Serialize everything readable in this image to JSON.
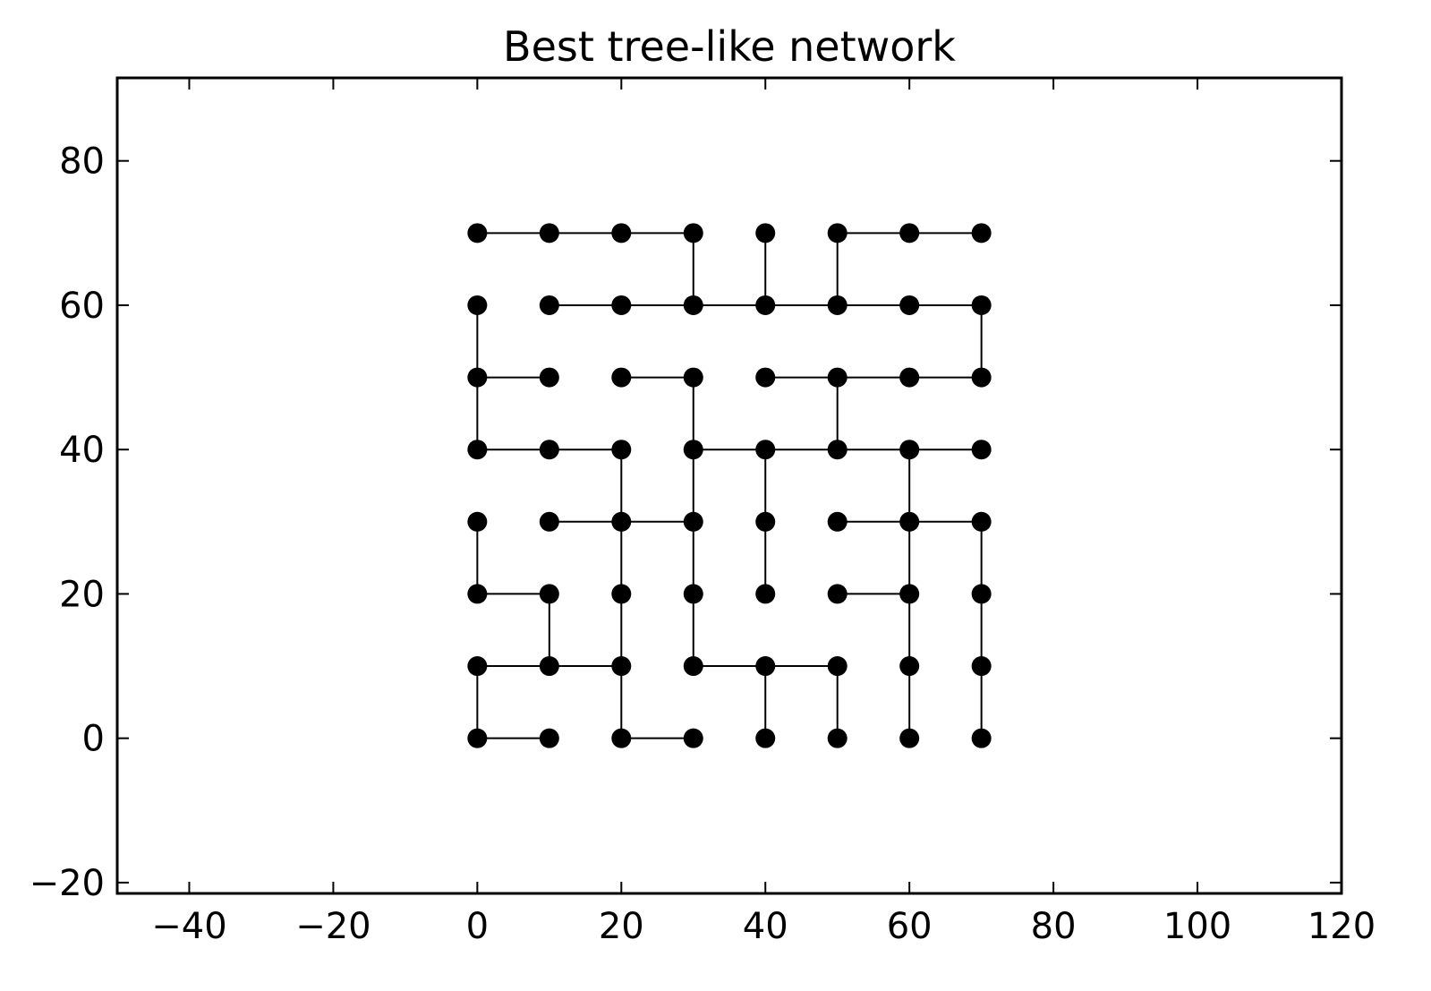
{
  "chart_data": {
    "type": "scatter",
    "title": "Best tree-like network",
    "xlabel": "",
    "ylabel": "",
    "xlim": [
      -50,
      120
    ],
    "ylim": [
      -21.5,
      91.5
    ],
    "xticks": [
      -40,
      -20,
      0,
      20,
      40,
      60,
      80,
      100,
      120
    ],
    "yticks": [
      -20,
      0,
      20,
      40,
      60,
      80
    ],
    "xtick_labels": [
      "−40",
      "−20",
      "0",
      "20",
      "40",
      "60",
      "80",
      "100",
      "120"
    ],
    "ytick_labels": [
      "−20",
      "0",
      "20",
      "40",
      "60",
      "80"
    ],
    "grid": false,
    "colors": {
      "marker": "#000000",
      "edge": "#000000",
      "axes": "#000000"
    },
    "nodes": {
      "x": [
        0,
        10,
        20,
        30,
        40,
        50,
        60,
        70
      ],
      "y": [
        0,
        10,
        20,
        30,
        40,
        50,
        60,
        70
      ]
    },
    "edges": [
      [
        [
          0,
          70
        ],
        [
          10,
          70
        ]
      ],
      [
        [
          10,
          70
        ],
        [
          20,
          70
        ]
      ],
      [
        [
          20,
          70
        ],
        [
          30,
          70
        ]
      ],
      [
        [
          50,
          70
        ],
        [
          60,
          70
        ]
      ],
      [
        [
          60,
          70
        ],
        [
          70,
          70
        ]
      ],
      [
        [
          30,
          70
        ],
        [
          30,
          60
        ]
      ],
      [
        [
          40,
          70
        ],
        [
          40,
          60
        ]
      ],
      [
        [
          50,
          70
        ],
        [
          50,
          60
        ]
      ],
      [
        [
          10,
          60
        ],
        [
          20,
          60
        ]
      ],
      [
        [
          20,
          60
        ],
        [
          30,
          60
        ]
      ],
      [
        [
          30,
          60
        ],
        [
          40,
          60
        ]
      ],
      [
        [
          40,
          60
        ],
        [
          50,
          60
        ]
      ],
      [
        [
          50,
          60
        ],
        [
          60,
          60
        ]
      ],
      [
        [
          60,
          60
        ],
        [
          70,
          60
        ]
      ],
      [
        [
          0,
          60
        ],
        [
          0,
          50
        ]
      ],
      [
        [
          70,
          60
        ],
        [
          70,
          50
        ]
      ],
      [
        [
          0,
          50
        ],
        [
          10,
          50
        ]
      ],
      [
        [
          20,
          50
        ],
        [
          30,
          50
        ]
      ],
      [
        [
          40,
          50
        ],
        [
          50,
          50
        ]
      ],
      [
        [
          50,
          50
        ],
        [
          60,
          50
        ]
      ],
      [
        [
          60,
          50
        ],
        [
          70,
          50
        ]
      ],
      [
        [
          0,
          50
        ],
        [
          0,
          40
        ]
      ],
      [
        [
          30,
          50
        ],
        [
          30,
          40
        ]
      ],
      [
        [
          50,
          50
        ],
        [
          50,
          40
        ]
      ],
      [
        [
          0,
          40
        ],
        [
          10,
          40
        ]
      ],
      [
        [
          10,
          40
        ],
        [
          20,
          40
        ]
      ],
      [
        [
          30,
          40
        ],
        [
          40,
          40
        ]
      ],
      [
        [
          40,
          40
        ],
        [
          50,
          40
        ]
      ],
      [
        [
          50,
          40
        ],
        [
          60,
          40
        ]
      ],
      [
        [
          60,
          40
        ],
        [
          70,
          40
        ]
      ],
      [
        [
          20,
          40
        ],
        [
          20,
          30
        ]
      ],
      [
        [
          30,
          40
        ],
        [
          30,
          30
        ]
      ],
      [
        [
          40,
          40
        ],
        [
          40,
          30
        ]
      ],
      [
        [
          60,
          40
        ],
        [
          60,
          30
        ]
      ],
      [
        [
          10,
          30
        ],
        [
          20,
          30
        ]
      ],
      [
        [
          20,
          30
        ],
        [
          30,
          30
        ]
      ],
      [
        [
          50,
          30
        ],
        [
          60,
          30
        ]
      ],
      [
        [
          60,
          30
        ],
        [
          70,
          30
        ]
      ],
      [
        [
          0,
          30
        ],
        [
          0,
          20
        ]
      ],
      [
        [
          20,
          30
        ],
        [
          20,
          20
        ]
      ],
      [
        [
          30,
          30
        ],
        [
          30,
          20
        ]
      ],
      [
        [
          40,
          30
        ],
        [
          40,
          20
        ]
      ],
      [
        [
          60,
          30
        ],
        [
          60,
          20
        ]
      ],
      [
        [
          70,
          30
        ],
        [
          70,
          20
        ]
      ],
      [
        [
          0,
          20
        ],
        [
          10,
          20
        ]
      ],
      [
        [
          50,
          20
        ],
        [
          60,
          20
        ]
      ],
      [
        [
          10,
          20
        ],
        [
          10,
          10
        ]
      ],
      [
        [
          20,
          20
        ],
        [
          20,
          10
        ]
      ],
      [
        [
          30,
          20
        ],
        [
          30,
          10
        ]
      ],
      [
        [
          60,
          20
        ],
        [
          60,
          10
        ]
      ],
      [
        [
          70,
          20
        ],
        [
          70,
          10
        ]
      ],
      [
        [
          0,
          10
        ],
        [
          10,
          10
        ]
      ],
      [
        [
          10,
          10
        ],
        [
          20,
          10
        ]
      ],
      [
        [
          30,
          10
        ],
        [
          40,
          10
        ]
      ],
      [
        [
          40,
          10
        ],
        [
          50,
          10
        ]
      ],
      [
        [
          0,
          10
        ],
        [
          0,
          0
        ]
      ],
      [
        [
          20,
          10
        ],
        [
          20,
          0
        ]
      ],
      [
        [
          40,
          10
        ],
        [
          40,
          0
        ]
      ],
      [
        [
          50,
          10
        ],
        [
          50,
          0
        ]
      ],
      [
        [
          60,
          10
        ],
        [
          60,
          0
        ]
      ],
      [
        [
          70,
          10
        ],
        [
          70,
          0
        ]
      ],
      [
        [
          0,
          0
        ],
        [
          10,
          0
        ]
      ],
      [
        [
          20,
          0
        ],
        [
          30,
          0
        ]
      ]
    ]
  }
}
